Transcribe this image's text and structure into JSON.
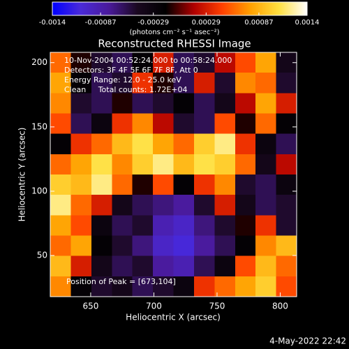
{
  "chart_data": {
    "type": "heatmap",
    "title": "Reconstructed RHESSI Image",
    "x_label": "Heliocentric X (arcsec)",
    "y_label": "Heliocentric Y (arcsec)",
    "colorbar_label": "(photons cm⁻² s⁻¹ asec⁻²)",
    "annotations": [
      "10-Nov-2004 00:52:24.000 to 00:58:24.000",
      "Detectors: 3F 4F 5F 6F 7F 8F, Att 0",
      "Energy Range: 12.0 - 25.0 keV",
      "Clean     Total counts: 1.72E+04"
    ],
    "peak_note": "Position of Peak = [673,104]",
    "timestamp": "4-May-2022 22:42",
    "xlim": [
      618,
      813
    ],
    "ylim": [
      18,
      208
    ],
    "xticks": [
      650,
      700,
      750,
      800
    ],
    "yticks": [
      50,
      100,
      150,
      200
    ],
    "colorbar_lim": [
      -0.0014,
      0.0014
    ],
    "colorbar_ticks": [
      -0.0014,
      -0.00087,
      -0.00029,
      0.00029,
      0.00087,
      0.0014
    ],
    "colormap": [
      "#0000ff",
      "#4a2ad8",
      "#4a1a9a",
      "#1a0820",
      "#000000",
      "#b00000",
      "#ff4000",
      "#ffa000",
      "#ffe040",
      "#ffffff"
    ],
    "z": [
      [
        0.0006,
        -0.0001,
        -0.0005,
        -0.0006,
        -0.0002,
        0.0003,
        -0.0006,
        -0.0005,
        0.0002,
        0.0005,
        0.0008,
        -0.0004
      ],
      [
        0.0008,
        -0.0002,
        -0.0006,
        -0.0005,
        0.0004,
        -0.0001,
        -0.0006,
        0.0003,
        -0.0005,
        0.0007,
        0.0006,
        -0.0005
      ],
      [
        0.0007,
        -0.0005,
        -0.0006,
        -0.0001,
        -0.0006,
        -0.0005,
        -0.0002,
        -0.0006,
        -0.0004,
        0.0002,
        0.0008,
        0.0003
      ],
      [
        0.0005,
        -0.0006,
        -0.0003,
        0.0004,
        0.0007,
        0.0002,
        -0.0005,
        -0.0006,
        0.0005,
        -0.0001,
        0.0006,
        -0.0002
      ],
      [
        -0.0002,
        0.0004,
        0.0006,
        0.0009,
        0.0011,
        0.0008,
        0.0006,
        0.001,
        0.0012,
        0.0004,
        -0.0003,
        -0.0006
      ],
      [
        0.0006,
        0.0008,
        0.0011,
        0.0007,
        0.001,
        0.0012,
        0.0009,
        0.0011,
        0.001,
        0.0006,
        -0.0004,
        0.0002
      ],
      [
        0.001,
        0.0009,
        0.0012,
        0.0006,
        -0.0001,
        0.0005,
        -0.0002,
        0.0004,
        0.0007,
        -0.0005,
        -0.0006,
        -0.0003
      ],
      [
        0.0012,
        0.0006,
        0.0003,
        -0.0004,
        -0.0006,
        -0.0007,
        -0.0008,
        -0.0005,
        0.0003,
        -0.0004,
        -0.0006,
        -0.0005
      ],
      [
        0.0008,
        0.0005,
        -0.0003,
        -0.0006,
        -0.0005,
        -0.0009,
        -0.001,
        -0.0007,
        -0.0005,
        -0.0001,
        0.0004,
        -0.0005
      ],
      [
        0.0006,
        0.0008,
        -0.0002,
        -0.0005,
        -0.0007,
        -0.001,
        -0.0011,
        -0.0008,
        -0.0006,
        -0.0002,
        0.0007,
        0.0009
      ],
      [
        0.0009,
        0.0003,
        -0.0004,
        -0.0006,
        -0.0005,
        -0.0008,
        -0.0009,
        -0.0006,
        -0.0003,
        0.0005,
        0.0009,
        0.0006
      ],
      [
        0.0007,
        -0.0002,
        -0.0005,
        -0.0004,
        -0.0006,
        -0.0005,
        -0.0003,
        0.0004,
        0.0006,
        0.0008,
        0.001,
        0.0005
      ]
    ]
  }
}
